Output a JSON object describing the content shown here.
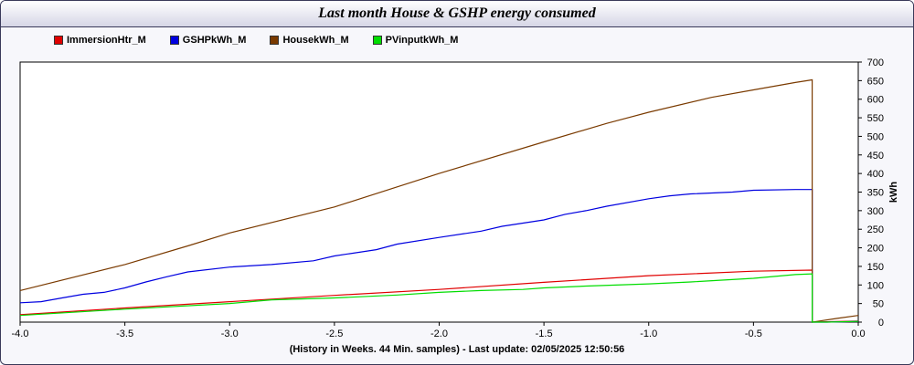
{
  "title": "Last month House & GSHP energy consumed",
  "footer": "(History in Weeks. 44 Min. samples) - Last update: 02/05/2025 12:50:56",
  "chart_data": {
    "type": "line",
    "title": "Last month House & GSHP energy consumed",
    "xlabel": "(History in Weeks. 44 Min. samples) - Last update: 02/05/2025 12:50:56",
    "ylabel": "kWh",
    "xlim": [
      -4.0,
      0.0
    ],
    "ylim": [
      0,
      700
    ],
    "x_ticks": [
      "-4.0",
      "-3.5",
      "-3.0",
      "-2.5",
      "-2.0",
      "-1.5",
      "-1.0",
      "-0.5",
      "0.0"
    ],
    "y_ticks": [
      "0",
      "50",
      "100",
      "150",
      "200",
      "250",
      "300",
      "350",
      "400",
      "450",
      "500",
      "550",
      "600",
      "650",
      "700"
    ],
    "grid": false,
    "legend_position": "top-left",
    "series": [
      {
        "name": "ImmersionHtr_M",
        "color": "#e00000",
        "points": [
          [
            -4.0,
            20
          ],
          [
            -3.5,
            38
          ],
          [
            -3.0,
            55
          ],
          [
            -2.5,
            72
          ],
          [
            -2.0,
            88
          ],
          [
            -1.5,
            107
          ],
          [
            -1.0,
            125
          ],
          [
            -0.5,
            137
          ],
          [
            -0.22,
            140
          ],
          [
            -0.22,
            0
          ],
          [
            -0.15,
            1
          ],
          [
            0.0,
            3
          ]
        ]
      },
      {
        "name": "GSHPkWh_M",
        "color": "#0000e0",
        "points": [
          [
            -4.0,
            52
          ],
          [
            -3.9,
            55
          ],
          [
            -3.8,
            65
          ],
          [
            -3.7,
            75
          ],
          [
            -3.6,
            80
          ],
          [
            -3.5,
            92
          ],
          [
            -3.4,
            108
          ],
          [
            -3.3,
            122
          ],
          [
            -3.2,
            135
          ],
          [
            -3.0,
            148
          ],
          [
            -2.8,
            155
          ],
          [
            -2.6,
            165
          ],
          [
            -2.5,
            178
          ],
          [
            -2.3,
            195
          ],
          [
            -2.2,
            210
          ],
          [
            -2.0,
            228
          ],
          [
            -1.8,
            245
          ],
          [
            -1.7,
            258
          ],
          [
            -1.5,
            275
          ],
          [
            -1.4,
            290
          ],
          [
            -1.3,
            300
          ],
          [
            -1.2,
            312
          ],
          [
            -1.0,
            332
          ],
          [
            -0.9,
            340
          ],
          [
            -0.8,
            345
          ],
          [
            -0.6,
            350
          ],
          [
            -0.5,
            355
          ],
          [
            -0.3,
            357
          ],
          [
            -0.22,
            357
          ],
          [
            -0.22,
            0
          ],
          [
            -0.15,
            0
          ],
          [
            0.0,
            2
          ]
        ]
      },
      {
        "name": "HousekWh_M",
        "color": "#7a3a00",
        "points": [
          [
            -4.0,
            85
          ],
          [
            -3.5,
            155
          ],
          [
            -3.2,
            205
          ],
          [
            -3.0,
            240
          ],
          [
            -2.5,
            310
          ],
          [
            -2.0,
            400
          ],
          [
            -1.5,
            485
          ],
          [
            -1.2,
            535
          ],
          [
            -1.0,
            565
          ],
          [
            -0.7,
            605
          ],
          [
            -0.5,
            625
          ],
          [
            -0.3,
            645
          ],
          [
            -0.22,
            652
          ],
          [
            -0.22,
            0
          ],
          [
            -0.1,
            10
          ],
          [
            0.0,
            18
          ]
        ]
      },
      {
        "name": "PVinputkWh_M",
        "color": "#00dd00",
        "points": [
          [
            -4.0,
            18
          ],
          [
            -3.5,
            35
          ],
          [
            -3.0,
            50
          ],
          [
            -2.8,
            60
          ],
          [
            -2.5,
            65
          ],
          [
            -2.2,
            73
          ],
          [
            -2.0,
            80
          ],
          [
            -1.8,
            85
          ],
          [
            -1.6,
            88
          ],
          [
            -1.5,
            92
          ],
          [
            -1.3,
            97
          ],
          [
            -1.0,
            103
          ],
          [
            -0.8,
            108
          ],
          [
            -0.5,
            118
          ],
          [
            -0.3,
            128
          ],
          [
            -0.22,
            130
          ],
          [
            -0.22,
            0
          ],
          [
            -0.15,
            0
          ],
          [
            0.0,
            2
          ]
        ]
      }
    ]
  }
}
